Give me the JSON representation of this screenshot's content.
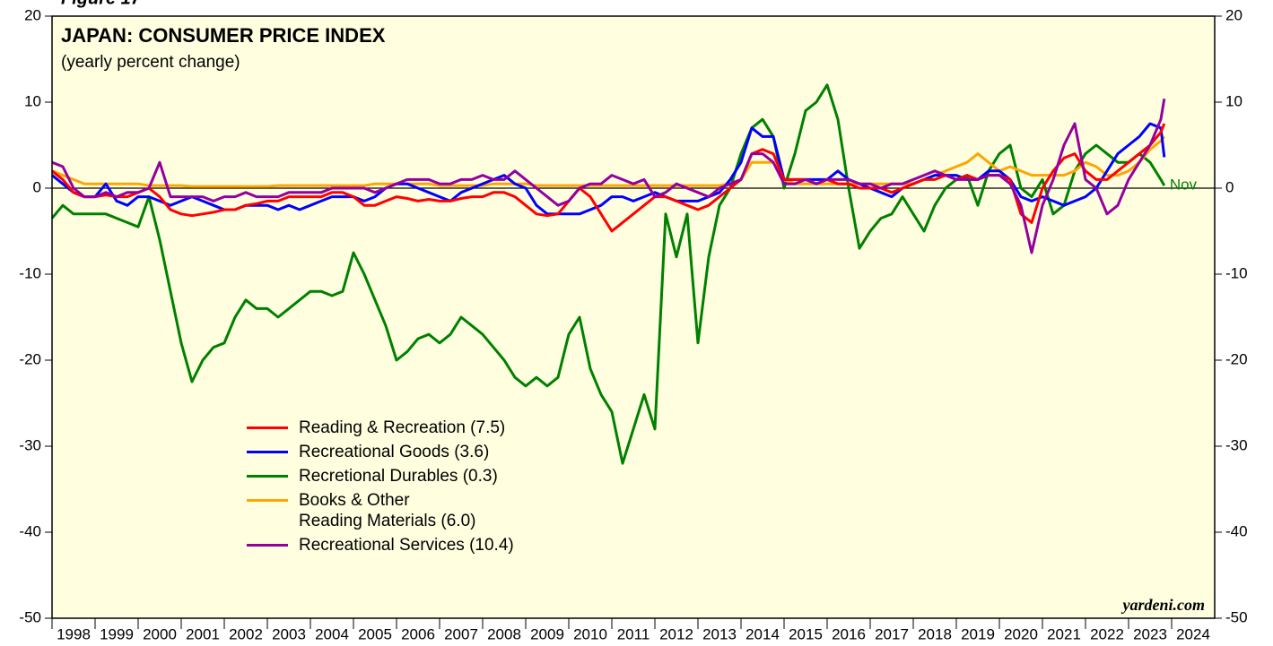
{
  "chart_data": {
    "type": "line",
    "figure_label": "Figure 17",
    "title": "JAPAN: CONSUMER PRICE INDEX",
    "subtitle": "(yearly percent change)",
    "source": "yardeni.com",
    "end_label": "Nov",
    "xlim": [
      1998,
      2025
    ],
    "xticks": [
      1998,
      1999,
      2000,
      2001,
      2002,
      2003,
      2004,
      2005,
      2006,
      2007,
      2008,
      2009,
      2010,
      2011,
      2012,
      2013,
      2014,
      2015,
      2016,
      2017,
      2018,
      2019,
      2020,
      2021,
      2022,
      2023,
      2024
    ],
    "ylim": [
      -50,
      20
    ],
    "yticks": [
      -50,
      -40,
      -30,
      -20,
      -10,
      0,
      10,
      20
    ],
    "x": [
      1998,
      1998.25,
      1998.5,
      1998.75,
      1999,
      1999.25,
      1999.5,
      1999.75,
      2000,
      2000.25,
      2000.5,
      2000.75,
      2001,
      2001.25,
      2001.5,
      2001.75,
      2002,
      2002.25,
      2002.5,
      2002.75,
      2003,
      2003.25,
      2003.5,
      2003.75,
      2004,
      2004.25,
      2004.5,
      2004.75,
      2005,
      2005.25,
      2005.5,
      2005.75,
      2006,
      2006.25,
      2006.5,
      2006.75,
      2007,
      2007.25,
      2007.5,
      2007.75,
      2008,
      2008.25,
      2008.5,
      2008.75,
      2009,
      2009.25,
      2009.5,
      2009.75,
      2010,
      2010.25,
      2010.5,
      2010.75,
      2011,
      2011.25,
      2011.5,
      2011.75,
      2012,
      2012.25,
      2012.5,
      2012.75,
      2013,
      2013.25,
      2013.5,
      2013.75,
      2014,
      2014.25,
      2014.5,
      2014.75,
      2015,
      2015.25,
      2015.5,
      2015.75,
      2016,
      2016.25,
      2016.5,
      2016.75,
      2017,
      2017.25,
      2017.5,
      2017.75,
      2018,
      2018.25,
      2018.5,
      2018.75,
      2019,
      2019.25,
      2019.5,
      2019.75,
      2020,
      2020.25,
      2020.5,
      2020.75,
      2021,
      2021.25,
      2021.5,
      2021.75,
      2022,
      2022.25,
      2022.5,
      2022.75,
      2023,
      2023.25,
      2023.5,
      2023.75,
      2023.83
    ],
    "series": [
      {
        "name": "Reading & Recreation (7.5)",
        "color": "#ff0000",
        "values": [
          2,
          1,
          -0.5,
          -1,
          -1,
          -0.8,
          -1,
          -1,
          -0.5,
          0,
          -1,
          -2.5,
          -3,
          -3.2,
          -3,
          -2.8,
          -2.5,
          -2.5,
          -2,
          -1.8,
          -1.5,
          -1.5,
          -1,
          -1,
          -1,
          -1,
          -0.5,
          -0.5,
          -1,
          -2,
          -2,
          -1.5,
          -1,
          -1.2,
          -1.5,
          -1.3,
          -1.5,
          -1.5,
          -1.2,
          -1,
          -1,
          -0.5,
          -0.5,
          -1,
          -2,
          -3,
          -3.2,
          -3,
          -1.5,
          0,
          -1,
          -3,
          -5,
          -4,
          -3,
          -2,
          -1,
          -1,
          -1.5,
          -2,
          -2.5,
          -2,
          -1,
          0,
          1,
          4,
          4.5,
          4,
          1,
          1,
          1,
          0.5,
          1,
          0.5,
          0.5,
          0,
          0,
          0,
          -0.5,
          0,
          0.5,
          1,
          1,
          1.5,
          1,
          1.5,
          1,
          1.5,
          1.5,
          1,
          -3,
          -4,
          0,
          2,
          3.5,
          4,
          2,
          1,
          1,
          2,
          3,
          4,
          5,
          6.5,
          7.5
        ]
      },
      {
        "name": "Recreational Goods (3.6)",
        "color": "#0000ff",
        "values": [
          1.5,
          0.5,
          -0.5,
          -1,
          -1,
          0.5,
          -1.5,
          -2,
          -1,
          -1,
          -1.5,
          -2,
          -1.5,
          -1,
          -1.5,
          -2,
          -2.5,
          -2.5,
          -2,
          -2,
          -2,
          -2.5,
          -2,
          -2.5,
          -2,
          -1.5,
          -1,
          -1,
          -1,
          -1.5,
          -1,
          0,
          0.5,
          0.5,
          0,
          -0.5,
          -1,
          -1.5,
          -0.5,
          0,
          0.5,
          1,
          1.5,
          0.5,
          0,
          -2,
          -3,
          -3,
          -3,
          -3,
          -2.5,
          -2,
          -1,
          -1,
          -1.5,
          -1,
          -0.5,
          -1,
          -1.5,
          -1.5,
          -1.5,
          -1,
          -0.5,
          1,
          3,
          7,
          6,
          6,
          1,
          1,
          1,
          1,
          1,
          2,
          1,
          0.5,
          0,
          -0.5,
          -1,
          0,
          0.5,
          1,
          1.5,
          1.5,
          1.5,
          1,
          1,
          2,
          2,
          1,
          -1,
          -1.5,
          -1,
          -1.5,
          -2,
          -1.5,
          -1,
          0,
          2,
          4,
          5,
          6,
          7.5,
          7,
          3.6
        ]
      },
      {
        "name": "Recretional Durables (0.3)",
        "color": "#008000",
        "values": [
          -3.5,
          -2,
          -3,
          -3,
          -3,
          -3,
          -3.5,
          -4,
          -4.5,
          -1,
          -6,
          -12,
          -18,
          -22.5,
          -20,
          -18.5,
          -18,
          -15,
          -13,
          -14,
          -14,
          -15,
          -14,
          -13,
          -12,
          -12,
          -12.5,
          -12,
          -7.5,
          -10,
          -13,
          -16,
          -20,
          -19,
          -17.5,
          -17,
          -18,
          -17,
          -15,
          -16,
          -17,
          -18.5,
          -20,
          -22,
          -23,
          -22,
          -23,
          -22,
          -17,
          -15,
          -21,
          -24,
          -26,
          -32,
          -28,
          -24,
          -28,
          -3,
          -8,
          -3,
          -18,
          -8,
          -2,
          0,
          4,
          7,
          8,
          6,
          0,
          4,
          9,
          10,
          12,
          8,
          0,
          -7,
          -5,
          -3.5,
          -3,
          -1,
          -3,
          -5,
          -2,
          0,
          1,
          1.5,
          -2,
          2,
          4,
          5,
          0,
          -1,
          1,
          -3,
          -2,
          2,
          4,
          5,
          4,
          3,
          3,
          4,
          3,
          1,
          0.3
        ]
      },
      {
        "name": "Books & Other\nReading Materials (6.0)",
        "color": "#ffa500",
        "values": [
          2,
          1.5,
          1,
          0.5,
          0.5,
          0.5,
          0.5,
          0.5,
          0.5,
          0.3,
          0.3,
          0.3,
          0.3,
          0.2,
          0.2,
          0.2,
          0.2,
          0.2,
          0.2,
          0.2,
          0.2,
          0.3,
          0.3,
          0.3,
          0.3,
          0.3,
          0.3,
          0.3,
          0.3,
          0.3,
          0.5,
          0.5,
          0.5,
          0.5,
          0.5,
          0.5,
          0.3,
          0.3,
          0.3,
          0.3,
          0.3,
          0.5,
          0.5,
          0.5,
          0.5,
          0.3,
          0.3,
          0.3,
          0.3,
          0.3,
          0.3,
          0.3,
          0.3,
          0.3,
          0.3,
          0.3,
          0.3,
          0.3,
          0.3,
          0.3,
          0.3,
          0.3,
          0.3,
          0.5,
          1,
          3,
          3,
          3,
          1,
          0.5,
          0.5,
          0.5,
          0.5,
          0.5,
          0.5,
          0.5,
          0.5,
          0.5,
          0.5,
          0.5,
          0.5,
          1,
          1.5,
          2,
          2.5,
          3,
          4,
          3,
          2,
          2.5,
          2,
          1.5,
          1.5,
          1.5,
          1.5,
          2,
          3,
          2.5,
          1.5,
          1.5,
          2,
          3,
          4.5,
          5.5,
          6
        ]
      },
      {
        "name": "Recreational Services (10.4)",
        "color": "#9400a0",
        "values": [
          3,
          2.5,
          0,
          -1,
          -1,
          -0.5,
          -1,
          -0.5,
          -0.5,
          0,
          3,
          -1,
          -1,
          -1,
          -1,
          -1.5,
          -1,
          -1,
          -0.5,
          -1,
          -1,
          -1,
          -0.5,
          -0.5,
          -0.5,
          -0.5,
          0,
          0,
          0,
          0,
          -0.5,
          0,
          0.5,
          1,
          1,
          1,
          0.5,
          0.5,
          1,
          1,
          1.5,
          1,
          1,
          2,
          1,
          0,
          -1,
          -2,
          -1.5,
          0,
          0.5,
          0.5,
          1.5,
          1,
          0.5,
          1,
          -1,
          -0.5,
          0.5,
          0,
          -0.5,
          -1,
          0,
          0.5,
          1,
          4,
          4,
          3,
          0.5,
          0.5,
          1,
          0.5,
          1,
          1,
          1,
          0.5,
          0.5,
          0,
          0.5,
          0.5,
          1,
          1.5,
          2,
          1.5,
          1,
          1,
          1,
          1.5,
          1.5,
          0.5,
          -2,
          -7.5,
          -2,
          1,
          5,
          7.5,
          1,
          0,
          -3,
          -2,
          1,
          3,
          5,
          8,
          10.4
        ]
      }
    ]
  }
}
